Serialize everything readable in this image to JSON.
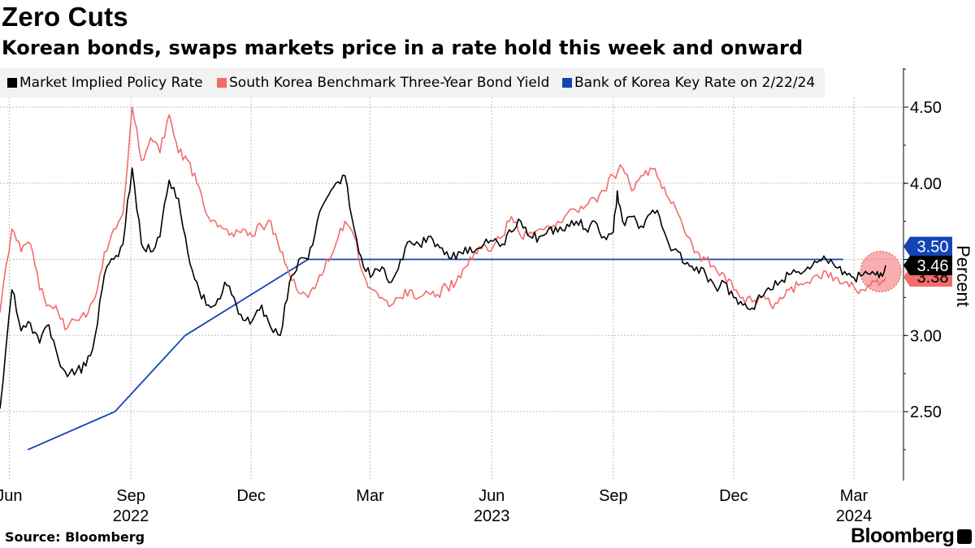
{
  "chart_data": {
    "type": "line",
    "title": "Zero Cuts",
    "subtitle": "Korean bonds, swaps markets price in a rate hold this week and onward",
    "ylabel": "Percent",
    "ylim": [
      2.1,
      4.75
    ],
    "y_ticks": [
      "2.50",
      "3.00",
      "3.50",
      "4.00",
      "4.50"
    ],
    "x_ticks": [
      {
        "date": "2022-06-01",
        "label": "Jun"
      },
      {
        "date": "2022-09-01",
        "label": "Sep"
      },
      {
        "date": "2022-12-01",
        "label": "Dec"
      },
      {
        "date": "2023-03-01",
        "label": "Mar"
      },
      {
        "date": "2023-06-01",
        "label": "Jun"
      },
      {
        "date": "2023-09-01",
        "label": "Sep"
      },
      {
        "date": "2023-12-01",
        "label": "Dec"
      },
      {
        "date": "2024-03-01",
        "label": "Mar"
      }
    ],
    "year_labels": [
      {
        "date": "2022-09-01",
        "label": "2022"
      },
      {
        "date": "2023-06-01",
        "label": "2023"
      },
      {
        "date": "2024-03-01",
        "label": "2024"
      }
    ],
    "legend_position": "top-left",
    "series": [
      {
        "name": "Market Implied Policy Rate",
        "color": "#000000",
        "end_label": "3.46",
        "points": [
          [
            "2022-05-25",
            2.52
          ],
          [
            "2022-06-03",
            3.3
          ],
          [
            "2022-06-10",
            3.03
          ],
          [
            "2022-06-17",
            3.08
          ],
          [
            "2022-06-24",
            2.95
          ],
          [
            "2022-07-01",
            3.07
          ],
          [
            "2022-07-08",
            2.85
          ],
          [
            "2022-07-15",
            2.73
          ],
          [
            "2022-07-22",
            2.77
          ],
          [
            "2022-07-29",
            2.8
          ],
          [
            "2022-08-05",
            3.0
          ],
          [
            "2022-08-12",
            3.4
          ],
          [
            "2022-08-19",
            3.5
          ],
          [
            "2022-08-26",
            3.6
          ],
          [
            "2022-09-02",
            4.1
          ],
          [
            "2022-09-09",
            3.6
          ],
          [
            "2022-09-16",
            3.55
          ],
          [
            "2022-09-23",
            3.65
          ],
          [
            "2022-09-30",
            4.02
          ],
          [
            "2022-10-07",
            3.9
          ],
          [
            "2022-10-14",
            3.55
          ],
          [
            "2022-10-21",
            3.35
          ],
          [
            "2022-10-28",
            3.2
          ],
          [
            "2022-11-04",
            3.2
          ],
          [
            "2022-11-11",
            3.35
          ],
          [
            "2022-11-18",
            3.25
          ],
          [
            "2022-11-25",
            3.1
          ],
          [
            "2022-12-02",
            3.1
          ],
          [
            "2022-12-09",
            3.2
          ],
          [
            "2022-12-16",
            3.05
          ],
          [
            "2022-12-23",
            3.0
          ],
          [
            "2022-12-30",
            3.35
          ],
          [
            "2023-01-06",
            3.5
          ],
          [
            "2023-01-13",
            3.5
          ],
          [
            "2023-01-20",
            3.75
          ],
          [
            "2023-01-27",
            3.9
          ],
          [
            "2023-02-03",
            4.0
          ],
          [
            "2023-02-10",
            4.05
          ],
          [
            "2023-02-17",
            3.7
          ],
          [
            "2023-02-24",
            3.45
          ],
          [
            "2023-03-03",
            3.4
          ],
          [
            "2023-03-10",
            3.45
          ],
          [
            "2023-03-17",
            3.35
          ],
          [
            "2023-03-24",
            3.5
          ],
          [
            "2023-03-31",
            3.62
          ],
          [
            "2023-04-07",
            3.6
          ],
          [
            "2023-04-14",
            3.65
          ],
          [
            "2023-04-21",
            3.6
          ],
          [
            "2023-04-28",
            3.55
          ],
          [
            "2023-05-05",
            3.5
          ],
          [
            "2023-05-12",
            3.58
          ],
          [
            "2023-05-19",
            3.55
          ],
          [
            "2023-05-26",
            3.6
          ],
          [
            "2023-06-02",
            3.62
          ],
          [
            "2023-06-09",
            3.6
          ],
          [
            "2023-06-16",
            3.68
          ],
          [
            "2023-06-23",
            3.75
          ],
          [
            "2023-06-30",
            3.65
          ],
          [
            "2023-07-07",
            3.65
          ],
          [
            "2023-07-14",
            3.7
          ],
          [
            "2023-07-21",
            3.68
          ],
          [
            "2023-07-28",
            3.73
          ],
          [
            "2023-08-04",
            3.75
          ],
          [
            "2023-08-11",
            3.7
          ],
          [
            "2023-08-18",
            3.75
          ],
          [
            "2023-08-25",
            3.65
          ],
          [
            "2023-09-01",
            3.68
          ],
          [
            "2023-09-04",
            3.95
          ],
          [
            "2023-09-08",
            3.75
          ],
          [
            "2023-09-15",
            3.78
          ],
          [
            "2023-09-22",
            3.72
          ],
          [
            "2023-09-29",
            3.8
          ],
          [
            "2023-10-06",
            3.78
          ],
          [
            "2023-10-13",
            3.6
          ],
          [
            "2023-10-20",
            3.55
          ],
          [
            "2023-10-27",
            3.48
          ],
          [
            "2023-11-03",
            3.45
          ],
          [
            "2023-11-10",
            3.4
          ],
          [
            "2023-11-17",
            3.32
          ],
          [
            "2023-11-24",
            3.35
          ],
          [
            "2023-12-01",
            3.25
          ],
          [
            "2023-12-08",
            3.2
          ],
          [
            "2023-12-15",
            3.18
          ],
          [
            "2023-12-22",
            3.25
          ],
          [
            "2023-12-29",
            3.3
          ],
          [
            "2024-01-05",
            3.35
          ],
          [
            "2024-01-12",
            3.4
          ],
          [
            "2024-01-19",
            3.42
          ],
          [
            "2024-01-26",
            3.45
          ],
          [
            "2024-02-02",
            3.48
          ],
          [
            "2024-02-09",
            3.5
          ],
          [
            "2024-02-16",
            3.45
          ],
          [
            "2024-02-23",
            3.42
          ],
          [
            "2024-03-01",
            3.38
          ],
          [
            "2024-03-08",
            3.4
          ],
          [
            "2024-03-15",
            3.42
          ],
          [
            "2024-03-20",
            3.38
          ],
          [
            "2024-03-25",
            3.46
          ]
        ]
      },
      {
        "name": "South Korea Benchmark Three-Year Bond Yield",
        "color": "#f26c6c",
        "end_label": "3.38",
        "points": [
          [
            "2022-05-25",
            3.15
          ],
          [
            "2022-06-03",
            3.7
          ],
          [
            "2022-06-10",
            3.55
          ],
          [
            "2022-06-17",
            3.6
          ],
          [
            "2022-06-24",
            3.3
          ],
          [
            "2022-07-01",
            3.2
          ],
          [
            "2022-07-08",
            3.15
          ],
          [
            "2022-07-15",
            3.05
          ],
          [
            "2022-07-22",
            3.1
          ],
          [
            "2022-07-29",
            3.12
          ],
          [
            "2022-08-05",
            3.25
          ],
          [
            "2022-08-12",
            3.55
          ],
          [
            "2022-08-19",
            3.7
          ],
          [
            "2022-08-26",
            3.8
          ],
          [
            "2022-09-02",
            4.5
          ],
          [
            "2022-09-09",
            4.15
          ],
          [
            "2022-09-16",
            4.3
          ],
          [
            "2022-09-23",
            4.2
          ],
          [
            "2022-09-30",
            4.45
          ],
          [
            "2022-10-07",
            4.2
          ],
          [
            "2022-10-14",
            4.15
          ],
          [
            "2022-10-21",
            4.0
          ],
          [
            "2022-10-28",
            3.8
          ],
          [
            "2022-11-04",
            3.75
          ],
          [
            "2022-11-11",
            3.7
          ],
          [
            "2022-11-18",
            3.65
          ],
          [
            "2022-11-25",
            3.7
          ],
          [
            "2022-12-02",
            3.65
          ],
          [
            "2022-12-09",
            3.72
          ],
          [
            "2022-12-16",
            3.75
          ],
          [
            "2022-12-23",
            3.55
          ],
          [
            "2022-12-30",
            3.4
          ],
          [
            "2023-01-06",
            3.28
          ],
          [
            "2023-01-13",
            3.25
          ],
          [
            "2023-01-20",
            3.35
          ],
          [
            "2023-01-27",
            3.5
          ],
          [
            "2023-02-03",
            3.6
          ],
          [
            "2023-02-10",
            3.75
          ],
          [
            "2023-02-17",
            3.65
          ],
          [
            "2023-02-24",
            3.4
          ],
          [
            "2023-03-03",
            3.3
          ],
          [
            "2023-03-10",
            3.25
          ],
          [
            "2023-03-17",
            3.2
          ],
          [
            "2023-03-24",
            3.25
          ],
          [
            "2023-03-31",
            3.3
          ],
          [
            "2023-04-07",
            3.25
          ],
          [
            "2023-04-14",
            3.28
          ],
          [
            "2023-04-21",
            3.27
          ],
          [
            "2023-04-28",
            3.32
          ],
          [
            "2023-05-05",
            3.35
          ],
          [
            "2023-05-12",
            3.45
          ],
          [
            "2023-05-19",
            3.55
          ],
          [
            "2023-05-26",
            3.6
          ],
          [
            "2023-06-02",
            3.58
          ],
          [
            "2023-06-09",
            3.65
          ],
          [
            "2023-06-16",
            3.78
          ],
          [
            "2023-06-23",
            3.65
          ],
          [
            "2023-06-30",
            3.68
          ],
          [
            "2023-07-07",
            3.7
          ],
          [
            "2023-07-14",
            3.72
          ],
          [
            "2023-07-21",
            3.75
          ],
          [
            "2023-07-28",
            3.8
          ],
          [
            "2023-08-04",
            3.82
          ],
          [
            "2023-08-11",
            3.85
          ],
          [
            "2023-08-18",
            3.9
          ],
          [
            "2023-08-25",
            3.95
          ],
          [
            "2023-09-01",
            4.05
          ],
          [
            "2023-09-08",
            4.1
          ],
          [
            "2023-09-15",
            3.95
          ],
          [
            "2023-09-22",
            4.05
          ],
          [
            "2023-09-29",
            4.1
          ],
          [
            "2023-10-06",
            4.02
          ],
          [
            "2023-10-13",
            3.9
          ],
          [
            "2023-10-20",
            3.8
          ],
          [
            "2023-10-27",
            3.65
          ],
          [
            "2023-11-03",
            3.55
          ],
          [
            "2023-11-10",
            3.5
          ],
          [
            "2023-11-17",
            3.45
          ],
          [
            "2023-11-24",
            3.4
          ],
          [
            "2023-12-01",
            3.3
          ],
          [
            "2023-12-08",
            3.25
          ],
          [
            "2023-12-15",
            3.22
          ],
          [
            "2023-12-22",
            3.25
          ],
          [
            "2023-12-29",
            3.2
          ],
          [
            "2024-01-05",
            3.25
          ],
          [
            "2024-01-12",
            3.3
          ],
          [
            "2024-01-19",
            3.33
          ],
          [
            "2024-01-26",
            3.35
          ],
          [
            "2024-02-02",
            3.4
          ],
          [
            "2024-02-09",
            3.42
          ],
          [
            "2024-02-16",
            3.38
          ],
          [
            "2024-02-23",
            3.35
          ],
          [
            "2024-03-01",
            3.32
          ],
          [
            "2024-03-08",
            3.3
          ],
          [
            "2024-03-15",
            3.36
          ],
          [
            "2024-03-20",
            3.33
          ],
          [
            "2024-03-25",
            3.38
          ]
        ]
      },
      {
        "name": "Bank of Korea Key Rate on 2/22/24",
        "color": "#1443b4",
        "end_label": "3.50",
        "points": [
          [
            "2022-06-15",
            2.25
          ],
          [
            "2022-08-20",
            2.5
          ],
          [
            "2022-10-12",
            3.0
          ],
          [
            "2023-01-13",
            3.5
          ],
          [
            "2024-02-22",
            3.5
          ]
        ]
      }
    ]
  },
  "footer": {
    "source": "Source: Bloomberg",
    "brand": "Bloomberg"
  }
}
